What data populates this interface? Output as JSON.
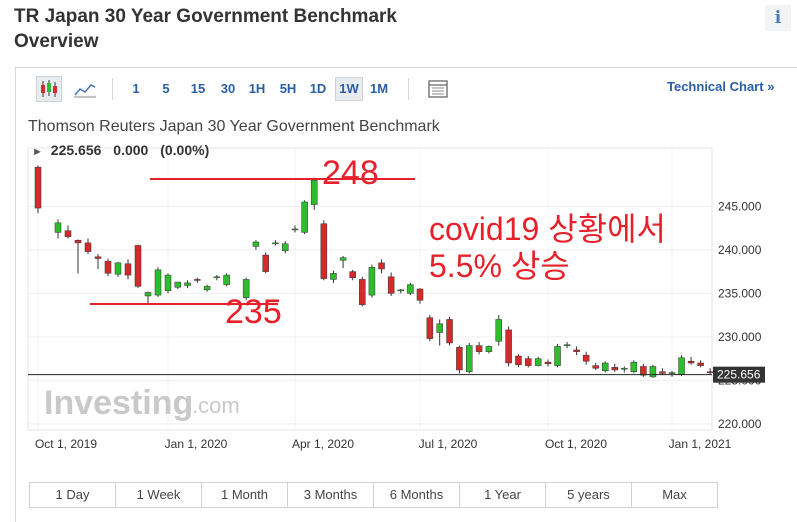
{
  "header": {
    "title_line1": "TR Japan 30 Year Government Benchmark",
    "title_line2": "Overview",
    "info_glyph": "i"
  },
  "toolbar": {
    "icons": [
      "candlestick-icon",
      "line-chart-icon",
      "table-icon"
    ],
    "intervals": [
      "1",
      "5",
      "15",
      "30",
      "1H",
      "5H",
      "1D",
      "1W",
      "1M"
    ],
    "active_interval": "1W",
    "technical_link": "Technical Chart",
    "technical_arrow": "»"
  },
  "chart": {
    "instrument": "Thomson Reuters Japan 30 Year Government Benchmark",
    "last": "225.656",
    "change": "0.000",
    "change_pct": "(0.00%)",
    "price_tag": "225.656",
    "watermark_brand": "Investing",
    "watermark_suffix": ".com"
  },
  "annotations": {
    "high": "248",
    "low": "235",
    "note_line1": "covid19 상황에서",
    "note_line2": "5.5% 상승"
  },
  "range_buttons": [
    "1 Day",
    "1 Week",
    "1 Month",
    "3 Months",
    "6 Months",
    "1 Year",
    "5 years",
    "Max"
  ],
  "colors": {
    "up": "#2dbd2d",
    "down": "#d32b2b",
    "annotation": "#e8202a",
    "link": "#2a5da8"
  },
  "chart_data": {
    "type": "candlestick",
    "x_tick_labels": [
      "Oct 1, 2019",
      "Jan 1, 2020",
      "Apr 1, 2020",
      "Jul 1, 2020",
      "Oct 1, 2020",
      "Jan 1, 2021"
    ],
    "x_ticks_week": [
      0,
      13,
      26,
      39,
      52,
      65
    ],
    "y_ticks": [
      220,
      225,
      230,
      235,
      240,
      245
    ],
    "y_tick_labels": [
      "220.000",
      "225.000",
      "230.000",
      "235.000",
      "240.000",
      "245.000"
    ],
    "ylim": [
      219.3,
      251.7
    ],
    "last_price": 225.656,
    "x_unit": "weeks from Oct 1, 2019",
    "candles": [
      {
        "w": 0,
        "o": 249.5,
        "h": 249.7,
        "l": 244.2,
        "c": 244.8
      },
      {
        "w": 2,
        "o": 242.0,
        "h": 243.5,
        "l": 241.3,
        "c": 243.1
      },
      {
        "w": 3,
        "o": 242.2,
        "h": 242.8,
        "l": 241.3,
        "c": 241.5
      },
      {
        "w": 4,
        "o": 241.1,
        "h": 241.2,
        "l": 237.3,
        "c": 240.8
      },
      {
        "w": 5,
        "o": 240.8,
        "h": 241.3,
        "l": 239.5,
        "c": 239.8
      },
      {
        "w": 6,
        "o": 239.2,
        "h": 239.5,
        "l": 237.8,
        "c": 239.0
      },
      {
        "w": 7,
        "o": 238.7,
        "h": 239.0,
        "l": 237.0,
        "c": 237.3
      },
      {
        "w": 8,
        "o": 237.2,
        "h": 238.6,
        "l": 236.9,
        "c": 238.5
      },
      {
        "w": 9,
        "o": 238.4,
        "h": 238.9,
        "l": 236.6,
        "c": 237.1
      },
      {
        "w": 10,
        "o": 240.5,
        "h": 240.6,
        "l": 235.6,
        "c": 235.8
      },
      {
        "w": 11,
        "o": 234.7,
        "h": 235.2,
        "l": 233.8,
        "c": 235.1
      },
      {
        "w": 12,
        "o": 234.8,
        "h": 238.0,
        "l": 234.6,
        "c": 237.7
      },
      {
        "w": 13,
        "o": 235.3,
        "h": 237.3,
        "l": 235.0,
        "c": 237.1
      },
      {
        "w": 14,
        "o": 235.7,
        "h": 236.3,
        "l": 235.5,
        "c": 236.3
      },
      {
        "w": 15,
        "o": 235.9,
        "h": 236.5,
        "l": 235.6,
        "c": 236.2
      },
      {
        "w": 16,
        "o": 236.6,
        "h": 236.8,
        "l": 236.2,
        "c": 236.5
      },
      {
        "w": 17,
        "o": 235.4,
        "h": 236.0,
        "l": 235.2,
        "c": 235.8
      },
      {
        "w": 18,
        "o": 236.8,
        "h": 237.1,
        "l": 236.5,
        "c": 236.9
      },
      {
        "w": 19,
        "o": 236.0,
        "h": 237.3,
        "l": 235.8,
        "c": 237.1
      },
      {
        "w": 21,
        "o": 234.5,
        "h": 236.8,
        "l": 234.2,
        "c": 236.6
      },
      {
        "w": 22,
        "o": 240.4,
        "h": 241.1,
        "l": 240.0,
        "c": 240.9
      },
      {
        "w": 23,
        "o": 239.4,
        "h": 239.7,
        "l": 237.3,
        "c": 237.5
      },
      {
        "w": 24,
        "o": 240.8,
        "h": 241.1,
        "l": 240.5,
        "c": 240.8
      },
      {
        "w": 25,
        "o": 239.9,
        "h": 241.0,
        "l": 239.6,
        "c": 240.7
      },
      {
        "w": 26,
        "o": 242.4,
        "h": 242.8,
        "l": 242.0,
        "c": 242.4
      },
      {
        "w": 27,
        "o": 242.0,
        "h": 245.7,
        "l": 241.8,
        "c": 245.5
      },
      {
        "w": 28,
        "o": 245.2,
        "h": 248.3,
        "l": 244.6,
        "c": 248.0
      },
      {
        "w": 29,
        "o": 243.0,
        "h": 243.4,
        "l": 236.5,
        "c": 236.7
      },
      {
        "w": 30,
        "o": 236.6,
        "h": 237.6,
        "l": 236.2,
        "c": 237.3
      },
      {
        "w": 31,
        "o": 238.8,
        "h": 239.3,
        "l": 237.9,
        "c": 239.1
      },
      {
        "w": 32,
        "o": 237.5,
        "h": 237.7,
        "l": 236.5,
        "c": 236.8
      },
      {
        "w": 33,
        "o": 236.6,
        "h": 236.9,
        "l": 233.5,
        "c": 233.7
      },
      {
        "w": 34,
        "o": 234.8,
        "h": 238.3,
        "l": 234.5,
        "c": 238.0
      },
      {
        "w": 35,
        "o": 238.5,
        "h": 238.9,
        "l": 237.3,
        "c": 237.8
      },
      {
        "w": 36,
        "o": 236.9,
        "h": 237.4,
        "l": 234.7,
        "c": 235.0
      },
      {
        "w": 37,
        "o": 235.3,
        "h": 235.5,
        "l": 235.0,
        "c": 235.4
      },
      {
        "w": 38,
        "o": 235.0,
        "h": 236.2,
        "l": 234.8,
        "c": 236.0
      },
      {
        "w": 39,
        "o": 235.5,
        "h": 235.6,
        "l": 233.8,
        "c": 234.2
      },
      {
        "w": 40,
        "o": 232.2,
        "h": 232.5,
        "l": 229.5,
        "c": 229.8
      },
      {
        "w": 41,
        "o": 230.5,
        "h": 232.0,
        "l": 229.0,
        "c": 231.5
      },
      {
        "w": 42,
        "o": 232.0,
        "h": 232.3,
        "l": 229.0,
        "c": 229.3
      },
      {
        "w": 43,
        "o": 228.8,
        "h": 229.0,
        "l": 225.8,
        "c": 226.2
      },
      {
        "w": 44,
        "o": 226.0,
        "h": 229.3,
        "l": 225.8,
        "c": 229.0
      },
      {
        "w": 45,
        "o": 229.0,
        "h": 229.4,
        "l": 228.0,
        "c": 228.3
      },
      {
        "w": 46,
        "o": 228.3,
        "h": 229.0,
        "l": 228.1,
        "c": 228.9
      },
      {
        "w": 47,
        "o": 229.5,
        "h": 232.5,
        "l": 229.0,
        "c": 232.0
      },
      {
        "w": 48,
        "o": 230.8,
        "h": 231.2,
        "l": 226.6,
        "c": 227.0
      },
      {
        "w": 49,
        "o": 227.8,
        "h": 228.0,
        "l": 226.5,
        "c": 226.8
      },
      {
        "w": 50,
        "o": 227.5,
        "h": 227.8,
        "l": 226.5,
        "c": 226.7
      },
      {
        "w": 51,
        "o": 226.7,
        "h": 227.7,
        "l": 226.6,
        "c": 227.5
      },
      {
        "w": 52,
        "o": 227.1,
        "h": 227.4,
        "l": 226.6,
        "c": 226.9
      },
      {
        "w": 53,
        "o": 226.7,
        "h": 229.2,
        "l": 226.5,
        "c": 228.9
      },
      {
        "w": 54,
        "o": 229.0,
        "h": 229.4,
        "l": 228.7,
        "c": 229.1
      },
      {
        "w": 55,
        "o": 228.5,
        "h": 228.9,
        "l": 227.9,
        "c": 228.3
      },
      {
        "w": 56,
        "o": 227.9,
        "h": 228.3,
        "l": 226.8,
        "c": 227.2
      },
      {
        "w": 57,
        "o": 226.7,
        "h": 227.0,
        "l": 226.2,
        "c": 226.4
      },
      {
        "w": 58,
        "o": 226.1,
        "h": 227.2,
        "l": 225.9,
        "c": 227.0
      },
      {
        "w": 59,
        "o": 226.5,
        "h": 226.9,
        "l": 226.0,
        "c": 226.2
      },
      {
        "w": 60,
        "o": 226.3,
        "h": 226.6,
        "l": 225.9,
        "c": 226.4
      },
      {
        "w": 61,
        "o": 226.0,
        "h": 227.3,
        "l": 225.8,
        "c": 227.1
      },
      {
        "w": 62,
        "o": 226.6,
        "h": 226.9,
        "l": 225.4,
        "c": 225.6
      },
      {
        "w": 63,
        "o": 225.4,
        "h": 226.8,
        "l": 225.3,
        "c": 226.6
      },
      {
        "w": 64,
        "o": 226.0,
        "h": 226.4,
        "l": 225.6,
        "c": 225.8
      },
      {
        "w": 65,
        "o": 225.8,
        "h": 226.1,
        "l": 225.4,
        "c": 225.9
      },
      {
        "w": 66,
        "o": 225.7,
        "h": 227.9,
        "l": 225.5,
        "c": 227.6
      },
      {
        "w": 67,
        "o": 227.2,
        "h": 227.7,
        "l": 226.8,
        "c": 227.0
      },
      {
        "w": 68,
        "o": 227.0,
        "h": 227.3,
        "l": 226.5,
        "c": 226.7
      },
      {
        "w": 69,
        "o": 226.0,
        "h": 226.4,
        "l": 225.7,
        "c": 225.9
      },
      {
        "w": 70,
        "o": 225.7,
        "h": 225.9,
        "l": 225.4,
        "c": 225.6
      }
    ]
  }
}
